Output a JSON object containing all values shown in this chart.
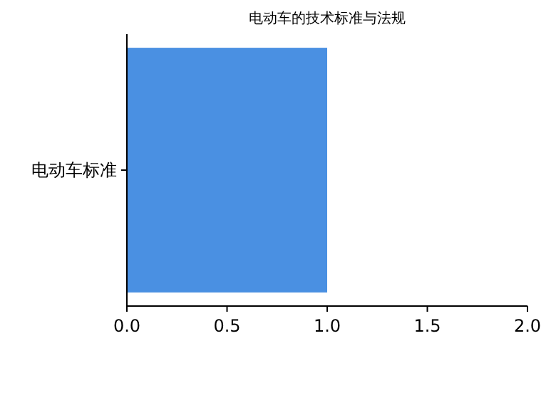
{
  "chart_data": {
    "type": "bar",
    "orientation": "horizontal",
    "title": "电动车的技术标准与法规",
    "categories": [
      "电动车标准"
    ],
    "values": [
      1.0
    ],
    "color": "#4a90e2",
    "xlim": [
      0,
      2
    ],
    "xticks": [
      {
        "value": 0,
        "label": "0.0"
      },
      {
        "value": 0.5,
        "label": "0.5"
      },
      {
        "value": 1,
        "label": "1.0"
      },
      {
        "value": 1.5,
        "label": "1.5"
      },
      {
        "value": 2,
        "label": "2.0"
      }
    ]
  }
}
